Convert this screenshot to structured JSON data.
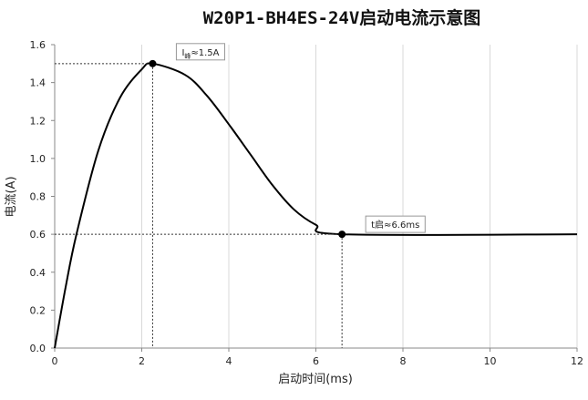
{
  "chart_data": {
    "type": "line",
    "title": "W20P1-BH4ES-24V启动电流示意图",
    "x_label": "启动时间(ms)",
    "y_label": "电流(A)",
    "x": [
      0,
      0.25,
      0.5,
      1,
      1.5,
      2,
      2.25,
      3,
      3.5,
      4,
      4.5,
      5,
      5.5,
      6,
      6.6,
      12
    ],
    "series": [
      {
        "name": "电流",
        "color": "#000000",
        "values": [
          0,
          0.32,
          0.6,
          1.04,
          1.32,
          1.47,
          1.5,
          1.44,
          1.33,
          1.18,
          1.02,
          0.86,
          0.73,
          0.65,
          0.6,
          0.6
        ]
      }
    ],
    "xlim": [
      0,
      12
    ],
    "xticks": [
      0,
      2,
      4,
      6,
      8,
      10,
      12
    ],
    "ylim": [
      0,
      1.6
    ],
    "yticks": [
      {
        "value": 0,
        "label": "0.0"
      },
      0.2,
      0.4,
      0.6,
      0.8,
      {
        "value": 1,
        "label": "1.0"
      },
      1.2,
      1.4,
      1.6
    ],
    "grid": "x",
    "annotations": [
      {
        "x": 2.25,
        "y": 1.5,
        "text": [
          "I",
          "峰",
          "≈1.5A"
        ]
      },
      {
        "x": 6.6,
        "y": 0.6,
        "text": [
          "t启≈6.6ms"
        ]
      }
    ]
  }
}
